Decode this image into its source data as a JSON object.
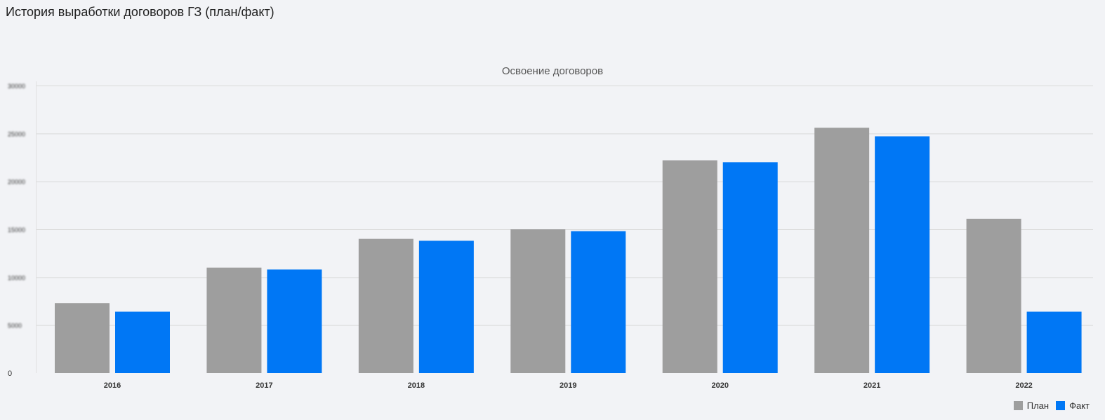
{
  "page": {
    "title": "История выработки договоров ГЗ (план/факт)"
  },
  "chart_data": {
    "type": "bar",
    "title": "Освоение договоров",
    "xlabel": "",
    "ylabel": "",
    "categories": [
      "2016",
      "2017",
      "2018",
      "2019",
      "2020",
      "2021",
      "2022"
    ],
    "series": [
      {
        "name": "План",
        "color": "#9e9e9e",
        "values": [
          7300,
          11000,
          14000,
          15000,
          22200,
          25600,
          16100
        ]
      },
      {
        "name": "Факт",
        "color": "#0077f5",
        "values": [
          6400,
          10800,
          13800,
          14800,
          22000,
          24700,
          6400
        ]
      }
    ],
    "ylim": [
      0,
      30000
    ],
    "yticks": [
      "0",
      "5000",
      "10000",
      "15000",
      "20000",
      "25000",
      "30000"
    ],
    "grid": true,
    "legend_position": "bottom-right"
  }
}
